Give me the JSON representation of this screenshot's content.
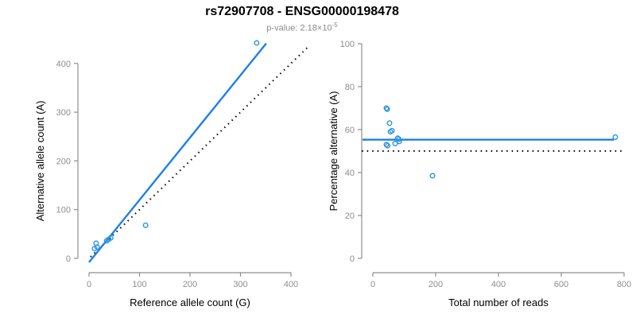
{
  "header": {
    "title": "rs72907708 - ENSG00000198478",
    "pvalue_prefix": "p-value: 2.18×10",
    "pvalue_exponent": "-5"
  },
  "colors": {
    "fit_line_blue": "#1E80E8",
    "point_blue": "#2E96E0",
    "identity_line_black": "#000000",
    "axis_gray": "#8E8E8E",
    "tick_label_gray": "#8E8E8E",
    "axis_title_black": "#000000"
  },
  "chart_data": [
    {
      "type": "scatter",
      "panel": "left",
      "xlabel": "Reference allele count (G)",
      "ylabel": "Alternative allele count (A)",
      "xlim": [
        0,
        400
      ],
      "ylim": [
        0,
        400
      ],
      "xticks": [
        0,
        100,
        200,
        300,
        400
      ],
      "yticks": [
        0,
        100,
        200,
        300,
        400
      ],
      "grid": false,
      "points": [
        [
          11,
          20
        ],
        [
          16,
          23
        ],
        [
          14,
          31
        ],
        [
          35,
          36
        ],
        [
          39,
          39
        ],
        [
          43,
          42
        ],
        [
          112,
          68
        ],
        [
          332,
          442
        ]
      ],
      "fit_line": {
        "x1": 0,
        "y1": -8,
        "x2": 351,
        "y2": 441,
        "style": "solid"
      },
      "identity_line": {
        "x1": 3,
        "y1": 3,
        "x2": 435,
        "y2": 435,
        "style": "dotted"
      }
    },
    {
      "type": "scatter",
      "panel": "right",
      "xlabel": "Total number of reads",
      "ylabel": "Percentage alternative (A)",
      "xlim": [
        0,
        800
      ],
      "ylim": [
        0,
        100
      ],
      "xticks": [
        0,
        200,
        400,
        600,
        800
      ],
      "yticks": [
        0,
        20,
        40,
        60,
        80,
        100
      ],
      "grid": false,
      "points": [
        [
          43,
          70
        ],
        [
          46,
          69.5
        ],
        [
          53,
          63
        ],
        [
          61,
          59.5
        ],
        [
          56,
          59
        ],
        [
          79,
          56
        ],
        [
          83,
          55.5
        ],
        [
          84,
          54.5
        ],
        [
          71,
          53.5
        ],
        [
          43,
          53
        ],
        [
          47,
          52.5
        ],
        [
          190,
          38.5
        ],
        [
          772,
          56.5
        ]
      ],
      "fit_line": {
        "x1": -33,
        "y1": 55.3,
        "x2": 768,
        "y2": 55.3,
        "style": "solid"
      },
      "identity_line": {
        "x1": -35,
        "y1": 50,
        "x2": 803,
        "y2": 50,
        "style": "dotted"
      }
    }
  ]
}
